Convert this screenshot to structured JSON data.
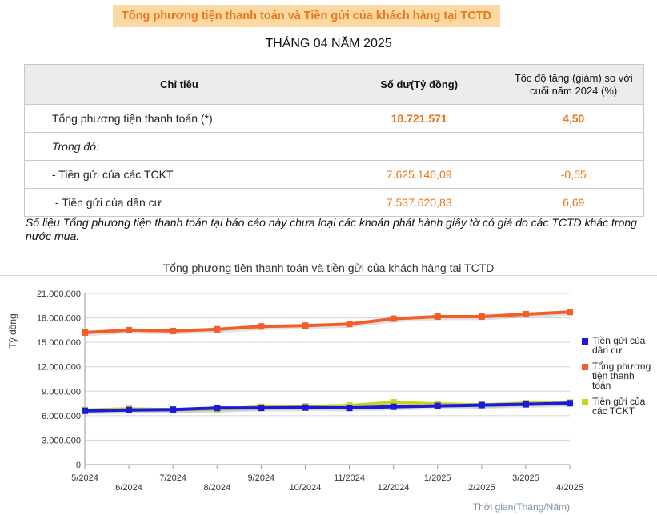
{
  "header": {
    "title": "Tổng phương tiện thanh toán và Tiền gửi của khách hàng tại TCTD",
    "subtitle": "THÁNG 04 NĂM 2025"
  },
  "table": {
    "headers": [
      "Chỉ tiêu",
      "Số dư(Tỷ đồng)",
      "Tốc độ tăng (giảm) so với cuối năm 2024 (%)"
    ],
    "rows": [
      {
        "label": "Tổng phương tiện thanh toán (*)",
        "balance": "18.721.571",
        "rate": "4,50"
      },
      {
        "label": "Trong đó:",
        "balance": "",
        "rate": ""
      },
      {
        "label": "- Tiền gửi của các TCKT",
        "balance": "7.625.146,09",
        "rate": "-0,55"
      },
      {
        "label": " - Tiền gửi của dân cư",
        "balance": "7.537.620,83",
        "rate": "6,69"
      }
    ]
  },
  "note": "Số liệu Tổng phương tiện thanh toán tại báo cáo này chưa loại các khoản phát hành giấy tờ có giá do các TCTD khác trong nước mua.",
  "chart_data": {
    "type": "line",
    "title": "Tổng phương tiện thanh toán và tiền gửi của khách hàng tại TCTD",
    "xlabel": "Thời gian(Tháng/Năm)",
    "ylabel": "Tỷ đồng",
    "ylim": [
      0,
      21000000
    ],
    "yticks": [
      "0",
      "3.000.000",
      "6.000.000",
      "9.000.000",
      "12.000.000",
      "15.000.000",
      "18.000.000",
      "21.000.000"
    ],
    "ytick_values": [
      0,
      3000000,
      6000000,
      9000000,
      12000000,
      15000000,
      18000000,
      21000000
    ],
    "categories": [
      "5/2024",
      "6/2024",
      "7/2024",
      "8/2024",
      "9/2024",
      "10/2024",
      "11/2024",
      "12/2024",
      "1/2025",
      "2/2025",
      "3/2025",
      "4/2025"
    ],
    "grid": true,
    "legend_position": "right",
    "series": [
      {
        "name": "Tiền gửi của dân cư",
        "color": "#1a1adf",
        "values": [
          6600000,
          6700000,
          6750000,
          6950000,
          6950000,
          7000000,
          6950000,
          7100000,
          7200000,
          7300000,
          7400000,
          7530000
        ]
      },
      {
        "name": "Tổng phương tiện thanh toán",
        "color": "#f35d2a",
        "values": [
          16200000,
          16500000,
          16400000,
          16600000,
          16950000,
          17050000,
          17250000,
          17900000,
          18150000,
          18150000,
          18450000,
          18720000
        ]
      },
      {
        "name": "Tiền gửi của các TCKT",
        "color": "#c8d21a",
        "values": [
          6700000,
          6850000,
          6750000,
          6800000,
          7100000,
          7150000,
          7250000,
          7650000,
          7450000,
          7350000,
          7550000,
          7630000
        ]
      }
    ]
  }
}
